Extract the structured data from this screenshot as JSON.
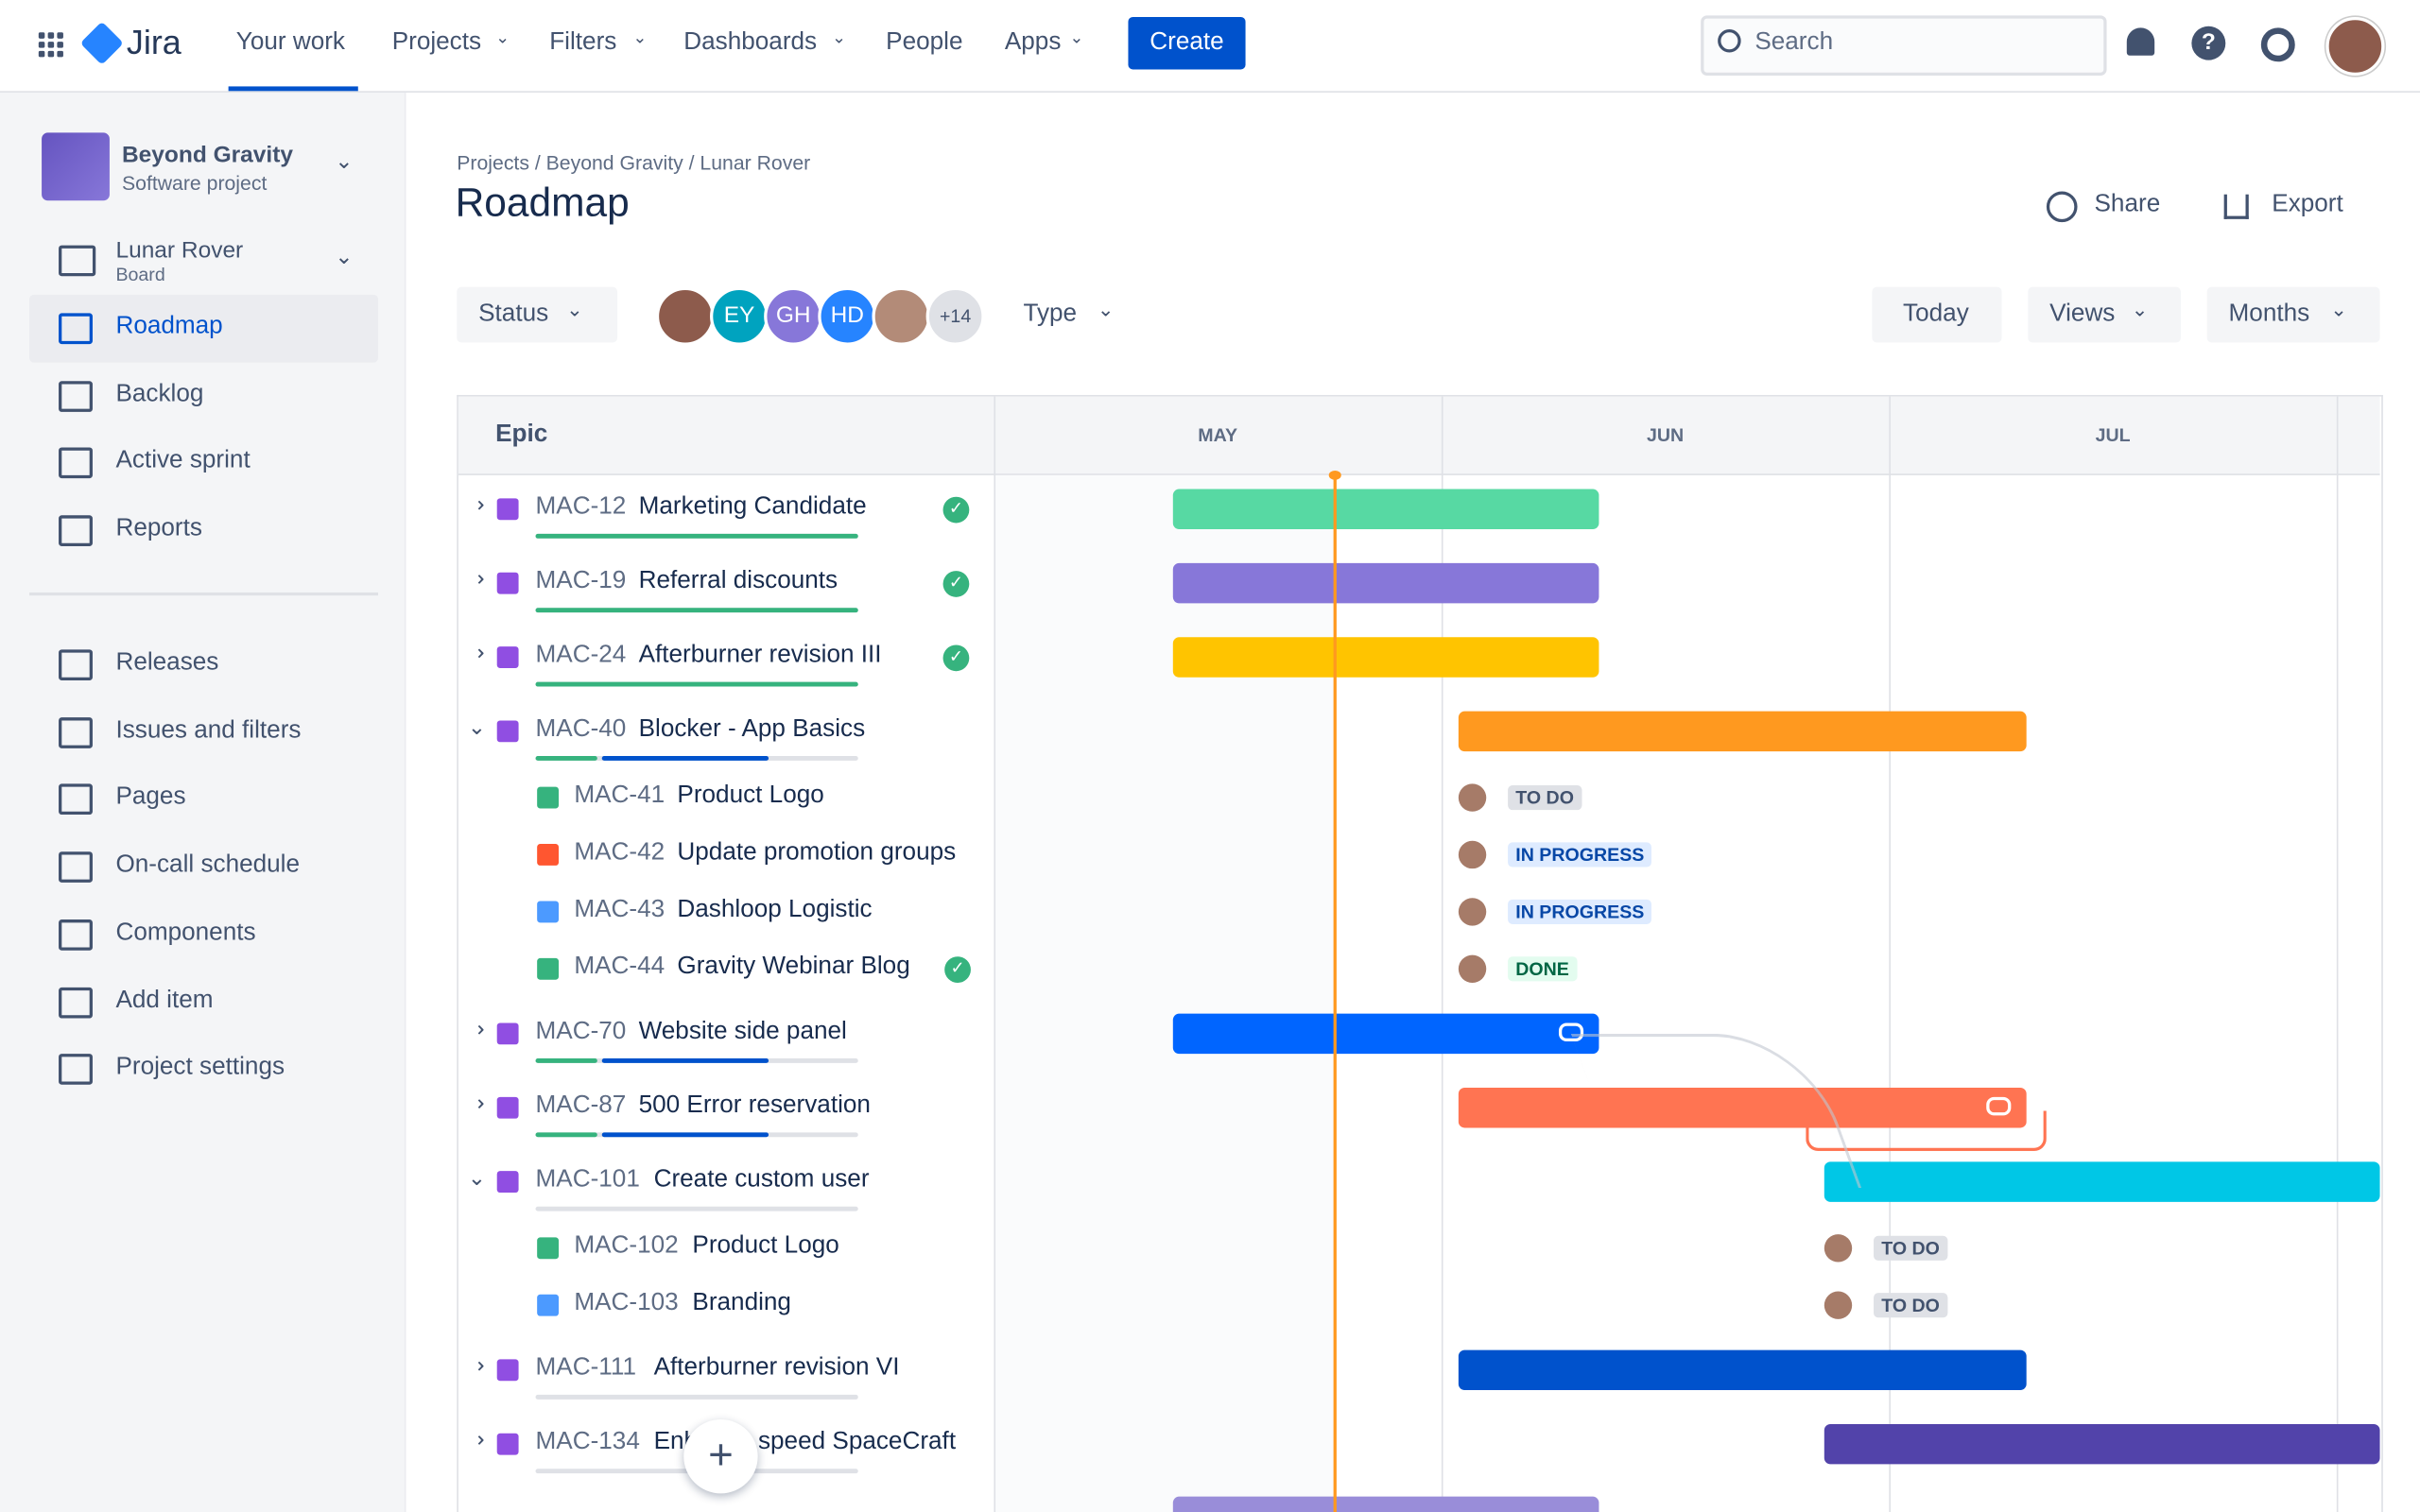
{
  "nav": {
    "product": "Jira",
    "items": [
      "Your work",
      "Projects",
      "Filters",
      "Dashboards",
      "People",
      "Apps"
    ],
    "create": "Create",
    "search": "Search"
  },
  "sidebar": {
    "project": "Beyond Gravity",
    "project_type": "Software project",
    "board": "Lunar Rover",
    "board_type": "Board",
    "items": [
      "Roadmap",
      "Backlog",
      "Active sprint",
      "Reports"
    ],
    "items2": [
      "Releases",
      "Issues and filters",
      "Pages",
      "On-call schedule",
      "Components",
      "Add item",
      "Project settings"
    ]
  },
  "header": {
    "breadcrumb": "Projects / Beyond Gravity / Lunar Rover",
    "title": "Roadmap",
    "share": "Share",
    "export": "Export"
  },
  "toolbar": {
    "status": "Status",
    "avatars": [
      "EY",
      "GH",
      "HD"
    ],
    "more": "+14",
    "type": "Type",
    "today": "Today",
    "views": "Views",
    "months": "Months"
  },
  "timeline": {
    "epic_header": "Epic",
    "months": [
      "MAY",
      "JUN",
      "JUL"
    ],
    "rows": [
      {
        "key": "MAC-12",
        "title": "Marketing Candidate"
      },
      {
        "key": "MAC-19",
        "title": "Referral discounts"
      },
      {
        "key": "MAC-24",
        "title": "Afterburner revision III"
      },
      {
        "key": "MAC-40",
        "title": "Blocker - App Basics"
      },
      {
        "key": "MAC-41",
        "title": "Product Logo",
        "status": "TO DO"
      },
      {
        "key": "MAC-42",
        "title": "Update promotion groups",
        "status": "IN PROGRESS"
      },
      {
        "key": "MAC-43",
        "title": "Dashloop Logistic",
        "status": "IN PROGRESS"
      },
      {
        "key": "MAC-44",
        "title": "Gravity Webinar Blog",
        "status": "DONE"
      },
      {
        "key": "MAC-70",
        "title": "Website side panel"
      },
      {
        "key": "MAC-87",
        "title": "500 Error reservation"
      },
      {
        "key": "MAC-101",
        "title": "Create custom user"
      },
      {
        "key": "MAC-102",
        "title": "Product Logo",
        "status": "TO DO"
      },
      {
        "key": "MAC-103",
        "title": "Branding",
        "status": "TO DO"
      },
      {
        "key": "MAC-111",
        "title": "Afterburner revision VI"
      },
      {
        "key": "MAC-134",
        "title": "Enhance speed SpaceCraft"
      }
    ]
  }
}
